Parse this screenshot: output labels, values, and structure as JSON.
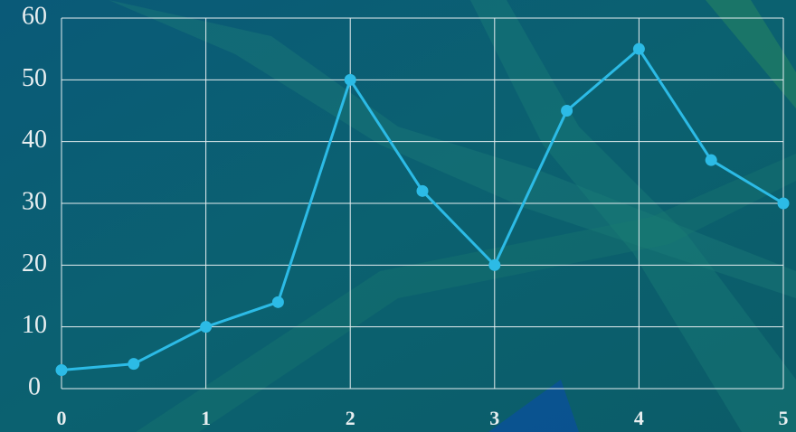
{
  "chart_data": {
    "type": "line",
    "x": [
      0,
      0.5,
      1,
      1.5,
      2,
      2.5,
      3,
      3.5,
      4,
      4.5,
      5
    ],
    "values": [
      3,
      4,
      10,
      14,
      50,
      32,
      20,
      45,
      55,
      37,
      30
    ],
    "color": "#2cbbe6",
    "xlim": [
      0,
      5
    ],
    "xticks": [
      0,
      1,
      2,
      3,
      4,
      5
    ],
    "ylim": [
      0,
      60
    ],
    "yticks": [
      0,
      10,
      20,
      30,
      40,
      50,
      60
    ],
    "grid": true
  }
}
